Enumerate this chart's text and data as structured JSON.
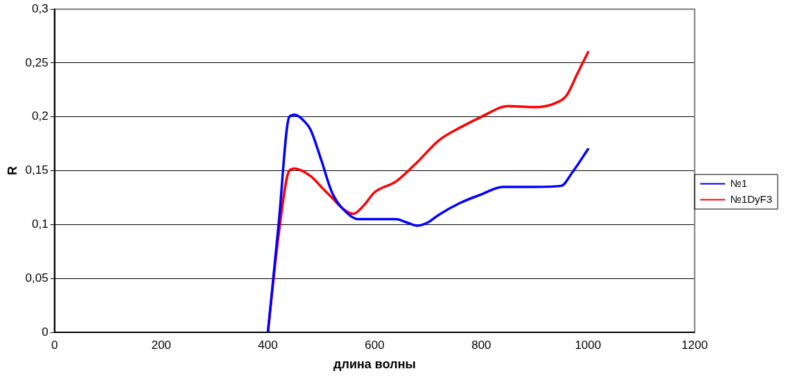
{
  "chart_data": {
    "type": "line",
    "xlabel": "длина волны",
    "ylabel": "R",
    "xlim": [
      0,
      1200
    ],
    "xticks": [
      0,
      200,
      400,
      600,
      800,
      1000,
      1200
    ],
    "ylim": [
      0,
      0.3
    ],
    "yticks": [
      0,
      {
        "value": 0.05,
        "label": "0,05"
      },
      {
        "value": 0.1,
        "label": "0,1"
      },
      {
        "value": 0.15,
        "label": "0,15"
      },
      {
        "value": 0.2,
        "label": "0,2"
      },
      {
        "value": 0.25,
        "label": "0,25"
      },
      {
        "value": 0.3,
        "label": "0,3"
      }
    ],
    "grid": "y",
    "legend": "right",
    "marker": "none",
    "line_style": "solid",
    "series": [
      {
        "name": "№1",
        "color": "#0000ff",
        "x": [
          400,
          420,
          440,
          450,
          470,
          480,
          500,
          520,
          550,
          570,
          600,
          640,
          660,
          680,
          700,
          720,
          760,
          800,
          840,
          900,
          950,
          970,
          1000
        ],
        "values": [
          0,
          0.1,
          0.2,
          0.202,
          0.195,
          0.188,
          0.16,
          0.13,
          0.11,
          0.105,
          0.105,
          0.105,
          0.102,
          0.099,
          0.102,
          0.109,
          0.12,
          0.128,
          0.135,
          0.135,
          0.136,
          0.148,
          0.17
        ]
      },
      {
        "name": "№1DyF3",
        "color": "#ff0000",
        "x": [
          400,
          420,
          440,
          450,
          480,
          500,
          520,
          540,
          560,
          580,
          600,
          640,
          680,
          720,
          760,
          800,
          850,
          900,
          940,
          960,
          980,
          1000
        ],
        "values": [
          0,
          0.09,
          0.15,
          0.152,
          0.145,
          0.135,
          0.125,
          0.115,
          0.11,
          0.118,
          0.13,
          0.14,
          0.158,
          0.178,
          0.19,
          0.2,
          0.21,
          0.209,
          0.213,
          0.22,
          0.24,
          0.26
        ]
      }
    ]
  }
}
